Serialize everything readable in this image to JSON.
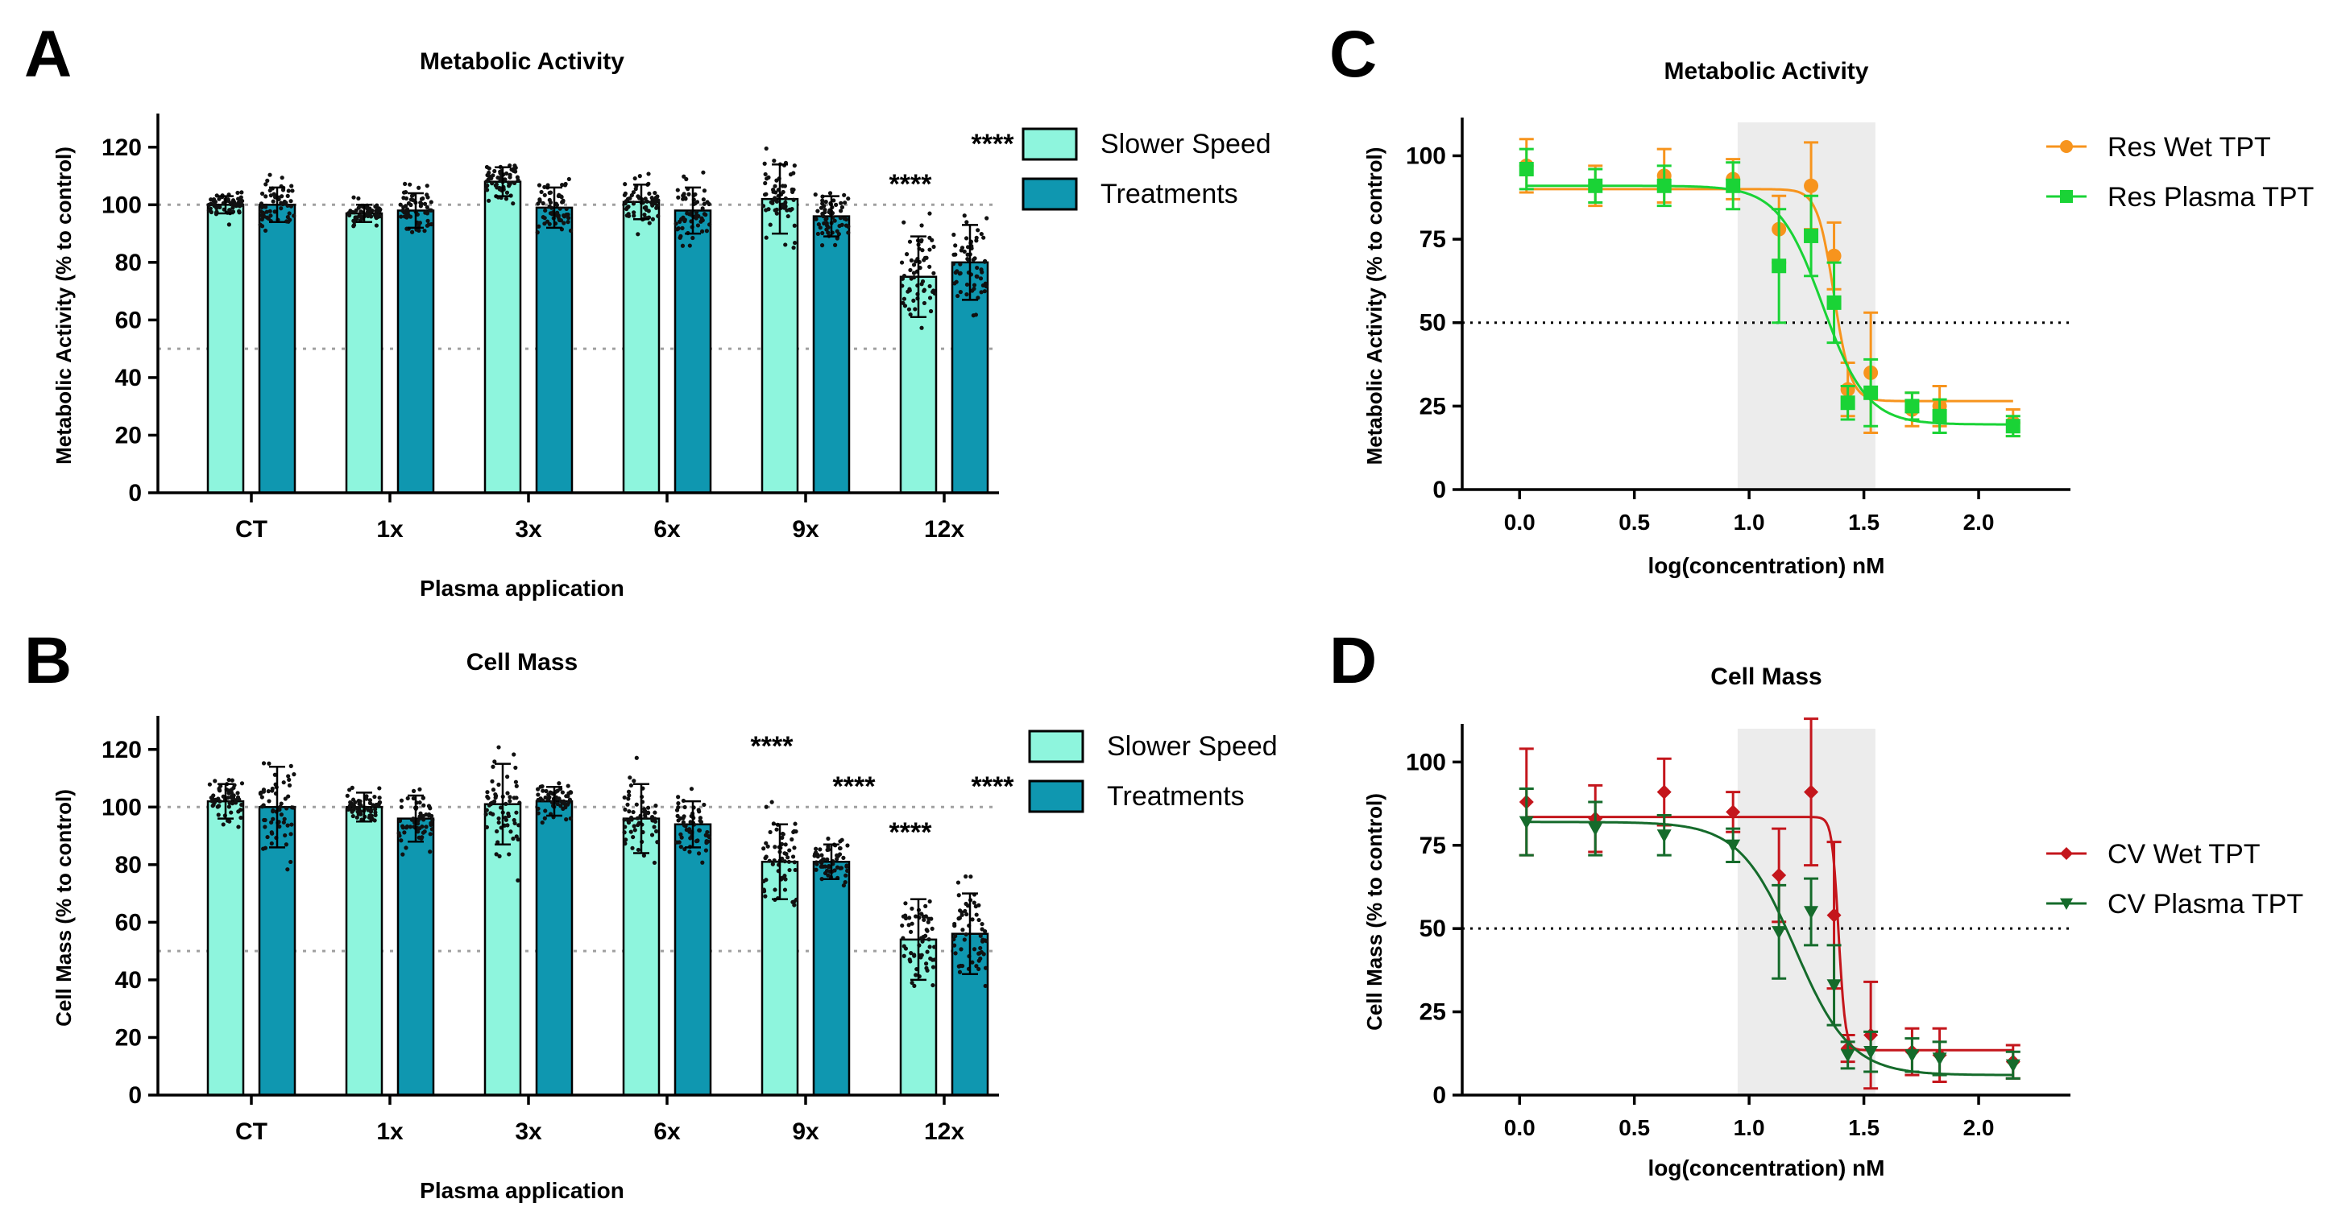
{
  "panels": [
    {
      "id": "A",
      "letter": "A",
      "title": "Metabolic Activity",
      "type": "bar",
      "xlabel": "Plasma application",
      "ylabel": "Metabolic Activity (% to control)",
      "categories": [
        "CT",
        "1x",
        "3x",
        "6x",
        "9x",
        "12x"
      ],
      "ylim": [
        0,
        130
      ],
      "yticks": [
        0,
        20,
        40,
        60,
        80,
        100,
        120
      ],
      "ref_lines": [
        100,
        50
      ],
      "legend": [
        "Slower Speed",
        "Treatments"
      ],
      "series": [
        {
          "name": "Slower Speed",
          "color": "#8ef5dd",
          "values": [
            100,
            97,
            108,
            101,
            102,
            75
          ],
          "sd": [
            3,
            3,
            5,
            6,
            12,
            14
          ]
        },
        {
          "name": "Treatments",
          "color": "#0f97b0",
          "values": [
            100,
            98,
            99,
            98,
            96,
            80
          ],
          "sd": [
            6,
            6,
            7,
            8,
            7,
            13
          ]
        }
      ],
      "annotations": [
        {
          "category": "12x",
          "series": "Slower Speed",
          "text": "****",
          "y": 104
        },
        {
          "category": "12x",
          "series": "Treatments",
          "text": "****",
          "y": 118
        }
      ]
    },
    {
      "id": "B",
      "letter": "B",
      "title": "Cell Mass",
      "type": "bar",
      "xlabel": "Plasma application",
      "ylabel": "Cell Mass (% to control)",
      "categories": [
        "CT",
        "1x",
        "3x",
        "6x",
        "9x",
        "12x"
      ],
      "ylim": [
        0,
        130
      ],
      "yticks": [
        0,
        20,
        40,
        60,
        80,
        100,
        120
      ],
      "ref_lines": [
        100,
        50
      ],
      "legend": [
        "Slower Speed",
        "Treatments"
      ],
      "series": [
        {
          "name": "Slower Speed",
          "color": "#8ef5dd",
          "values": [
            102,
            100,
            101,
            96,
            81,
            54
          ],
          "sd": [
            6,
            5,
            14,
            12,
            13,
            14
          ]
        },
        {
          "name": "Treatments",
          "color": "#0f97b0",
          "values": [
            100,
            96,
            102,
            94,
            81,
            56
          ],
          "sd": [
            14,
            8,
            5,
            8,
            6,
            14
          ]
        }
      ],
      "annotations": [
        {
          "category": "9x",
          "series": "Slower Speed",
          "text": "****",
          "y": 118
        },
        {
          "category": "9x",
          "series": "Treatments",
          "text": "****",
          "y": 104
        },
        {
          "category": "12x",
          "series": "Slower Speed",
          "text": "****",
          "y": 88
        },
        {
          "category": "12x",
          "series": "Treatments",
          "text": "****",
          "y": 104
        }
      ]
    },
    {
      "id": "C",
      "letter": "C",
      "title": "Metabolic Activity",
      "type": "line",
      "xlabel": "log(concentration) nM",
      "ylabel": "Metabolic Activity (% to control)",
      "xlim": [
        -0.25,
        2.4
      ],
      "xticks": [
        "0.0",
        "0.5",
        "1.0",
        "1.5",
        "2.0"
      ],
      "ylim": [
        0,
        110
      ],
      "yticks": [
        0,
        25,
        50,
        75,
        100
      ],
      "ref_line": 50,
      "shade_x": [
        0.95,
        1.55
      ],
      "series": [
        {
          "name": "Res Wet TPT",
          "color": "#f7941d",
          "marker": "circle",
          "x": [
            0.03,
            0.33,
            0.63,
            0.93,
            1.13,
            1.27,
            1.37,
            1.43,
            1.53,
            1.71,
            1.83,
            2.15
          ],
          "y": [
            97,
            91,
            94,
            93,
            78,
            91,
            70,
            30,
            35,
            24,
            25,
            20
          ],
          "err": [
            8,
            6,
            8,
            6,
            10,
            13,
            10,
            8,
            18,
            5,
            6,
            4
          ],
          "fit": {
            "top": 90,
            "bottom": 26.5,
            "ic50": 1.37,
            "hill": 12
          }
        },
        {
          "name": "Res Plasma TPT",
          "color": "#1ad336",
          "marker": "square",
          "x": [
            0.03,
            0.33,
            0.63,
            0.93,
            1.13,
            1.27,
            1.37,
            1.43,
            1.53,
            1.71,
            1.83,
            2.15
          ],
          "y": [
            96,
            91,
            91,
            91,
            67,
            76,
            56,
            26,
            29,
            25,
            22,
            19
          ],
          "err": [
            6,
            5,
            6,
            7,
            17,
            12,
            12,
            5,
            10,
            4,
            5,
            3
          ],
          "fit": {
            "top": 91,
            "bottom": 19.5,
            "ic50": 1.32,
            "hill": 4.5
          }
        }
      ]
    },
    {
      "id": "D",
      "letter": "D",
      "title": "Cell Mass",
      "type": "line",
      "xlabel": "log(concentration) nM",
      "ylabel": "Cell Mass (% to control)",
      "xlim": [
        -0.25,
        2.4
      ],
      "xticks": [
        "0.0",
        "0.5",
        "1.0",
        "1.5",
        "2.0"
      ],
      "ylim": [
        0,
        110
      ],
      "yticks": [
        0,
        25,
        50,
        75,
        100
      ],
      "ref_line": 50,
      "shade_x": [
        0.95,
        1.55
      ],
      "series": [
        {
          "name": "CV Wet TPT",
          "color": "#c4161c",
          "marker": "diamond",
          "x": [
            0.03,
            0.33,
            0.63,
            0.93,
            1.13,
            1.27,
            1.37,
            1.43,
            1.53,
            1.71,
            1.83,
            2.15
          ],
          "y": [
            88,
            83,
            91,
            85,
            66,
            91,
            54,
            14,
            18,
            13,
            12,
            10
          ],
          "err": [
            16,
            10,
            10,
            6,
            14,
            22,
            22,
            4,
            16,
            7,
            8,
            5
          ],
          "fit": {
            "top": 83.5,
            "bottom": 13.5,
            "ic50": 1.39,
            "hill": 30
          }
        },
        {
          "name": "CV Plasma TPT",
          "color": "#156b2b",
          "marker": "triangle-down",
          "x": [
            0.03,
            0.33,
            0.63,
            0.93,
            1.13,
            1.27,
            1.37,
            1.43,
            1.53,
            1.71,
            1.83,
            2.15
          ],
          "y": [
            82,
            80,
            78,
            75,
            49,
            55,
            33,
            12,
            13,
            12,
            11,
            9
          ],
          "err": [
            10,
            8,
            6,
            5,
            14,
            10,
            12,
            4,
            6,
            5,
            5,
            4
          ],
          "fit": {
            "top": 82,
            "bottom": 6,
            "ic50": 1.2,
            "hill": 3.6
          }
        }
      ]
    }
  ]
}
